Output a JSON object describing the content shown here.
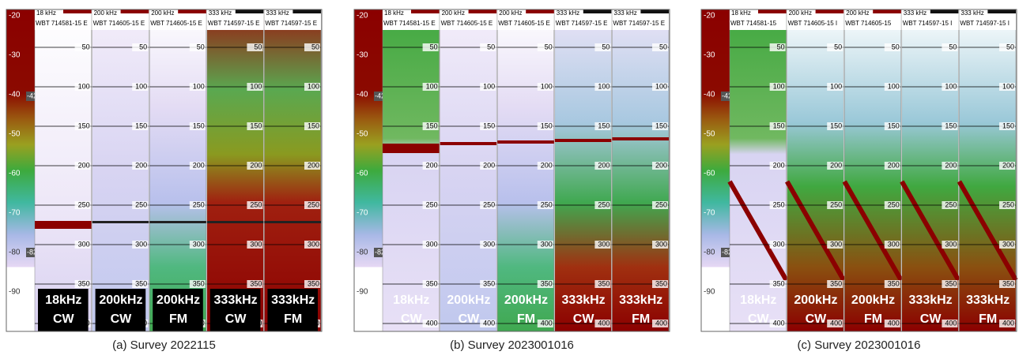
{
  "panels": [
    {
      "caption": "(a) Survey 2022115",
      "colorbar_labels": [
        "-20",
        "-30",
        "-40",
        "-50",
        "-60",
        "-70",
        "-80",
        "-90"
      ],
      "markers": [
        "-42",
        "-82"
      ],
      "depth_labels": [
        "50",
        "100",
        "150",
        "200",
        "250",
        "300",
        "350",
        "400"
      ],
      "channels": [
        {
          "frequency": "18 kHz",
          "transducer": "WBT 714581-15 E",
          "label": "18kHz",
          "mode": "CW"
        },
        {
          "frequency": "200 kHz",
          "transducer": "WBT 714605-15 E",
          "label": "200kHz",
          "mode": "CW"
        },
        {
          "frequency": "200 kHz",
          "transducer": "WBT 714605-15 E",
          "label": "200kHz",
          "mode": "FM"
        },
        {
          "frequency": "333 kHz",
          "transducer": "WBT 714597-15 E",
          "label": "333kHz",
          "mode": "CW"
        },
        {
          "frequency": "333 kHz",
          "transducer": "WBT 714597-15 E",
          "label": "333kHz",
          "mode": "FM"
        }
      ]
    },
    {
      "caption": "(b) Survey 2023001016",
      "colorbar_labels": [
        "-20",
        "-30",
        "-40",
        "-50",
        "-60",
        "-70",
        "-80",
        "-90"
      ],
      "markers": [
        "-42",
        "-82"
      ],
      "depth_labels": [
        "50",
        "100",
        "150",
        "200",
        "250",
        "300",
        "350",
        "400"
      ],
      "channels": [
        {
          "frequency": "18 kHz",
          "transducer": "WBT 714581-15 E",
          "label": "18kHz",
          "mode": "CW"
        },
        {
          "frequency": "200 kHz",
          "transducer": "WBT 714605-15 E",
          "label": "200kHz",
          "mode": "CW"
        },
        {
          "frequency": "200 kHz",
          "transducer": "WBT 714605-15 E",
          "label": "200kHz",
          "mode": "FM"
        },
        {
          "frequency": "333 kHz",
          "transducer": "WBT 714597-15 E",
          "label": "333kHz",
          "mode": "CW"
        },
        {
          "frequency": "333 kHz",
          "transducer": "WBT 714597-15 E",
          "label": "333kHz",
          "mode": "FM"
        }
      ]
    },
    {
      "caption": "(c) Survey 2023001016",
      "colorbar_labels": [
        "-20",
        "-30",
        "-40",
        "-50",
        "-60",
        "-70",
        "-80",
        "-90"
      ],
      "markers": [
        "-42",
        "-82"
      ],
      "depth_labels": [
        "50",
        "100",
        "150",
        "200",
        "250",
        "300",
        "350",
        "400"
      ],
      "channels": [
        {
          "frequency": "18 kHz",
          "transducer": "WBT 714581-15",
          "label": "18kHz",
          "mode": "CW"
        },
        {
          "frequency": "200 kHz",
          "transducer": "WBT 714605-15 I",
          "label": "200kHz",
          "mode": "CW"
        },
        {
          "frequency": "200 kHz",
          "transducer": "WBT 714605-15",
          "label": "200kHz",
          "mode": "FM"
        },
        {
          "frequency": "333 kHz",
          "transducer": "WBT 714597-15 I",
          "label": "333kHz",
          "mode": "CW"
        },
        {
          "frequency": "333 kHz",
          "transducer": "WBT 714597-15 I",
          "label": "333kHz",
          "mode": "FM"
        }
      ]
    }
  ]
}
